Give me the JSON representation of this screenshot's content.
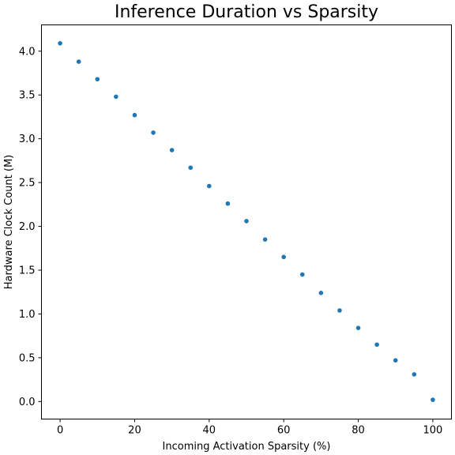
{
  "chart_data": {
    "type": "scatter",
    "title": "Inference Duration vs Sparsity",
    "xlabel": "Incoming Activation Sparsity (%)",
    "ylabel": "Hardware Clock Count (M)",
    "xlim": [
      -5,
      105
    ],
    "ylim": [
      -0.2,
      4.3
    ],
    "xticks": [
      0,
      20,
      40,
      60,
      80,
      100
    ],
    "yticks": [
      0.0,
      0.5,
      1.0,
      1.5,
      2.0,
      2.5,
      3.0,
      3.5,
      4.0
    ],
    "xtick_labels": [
      "0",
      "20",
      "40",
      "60",
      "80",
      "100"
    ],
    "ytick_labels": [
      "0.0",
      "0.5",
      "1.0",
      "1.5",
      "2.0",
      "2.5",
      "3.0",
      "3.5",
      "4.0"
    ],
    "grid": false,
    "marker_color": "#1f77b4",
    "series": [
      {
        "x": [
          0,
          5,
          10,
          15,
          20,
          25,
          30,
          35,
          40,
          45,
          50,
          55,
          60,
          65,
          70,
          75,
          80,
          85,
          90,
          95,
          100
        ],
        "y": [
          4.09,
          3.88,
          3.68,
          3.48,
          3.27,
          3.07,
          2.87,
          2.67,
          2.46,
          2.26,
          2.06,
          1.85,
          1.65,
          1.45,
          1.24,
          1.04,
          0.84,
          0.65,
          0.47,
          0.31,
          0.02
        ]
      }
    ]
  }
}
